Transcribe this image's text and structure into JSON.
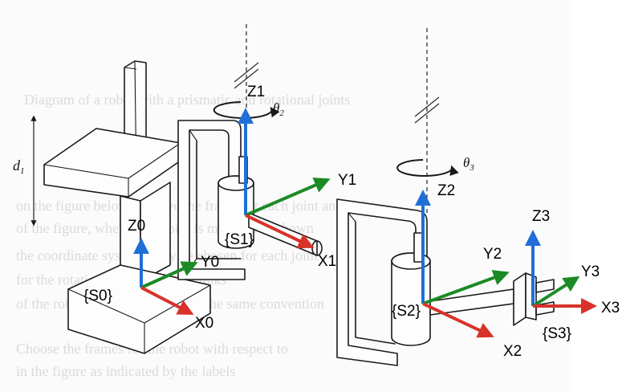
{
  "colors": {
    "z_axis": "#1f6fd6",
    "y_axis": "#1c8a25",
    "x_axis": "#d8322a",
    "line": "#1a1a1a",
    "background": "#ffffff"
  },
  "labels": {
    "d1": "d",
    "d1_sub": "1",
    "theta2": "θ",
    "theta2_sub": "2",
    "theta3": "θ",
    "theta3_sub": "3"
  },
  "frames": {
    "s0": {
      "name": "{S0}",
      "x": "X0",
      "y": "Y0",
      "z": "Z0"
    },
    "s1": {
      "name": "{S1}",
      "x": "X1",
      "y": "Y1",
      "z": "Z1"
    },
    "s2": {
      "name": "{S2}",
      "x": "X2",
      "y": "Y2",
      "z": "Z2"
    },
    "s3": {
      "name": "{S3}",
      "x": "X3",
      "y": "Y3",
      "z": "Z3"
    }
  }
}
